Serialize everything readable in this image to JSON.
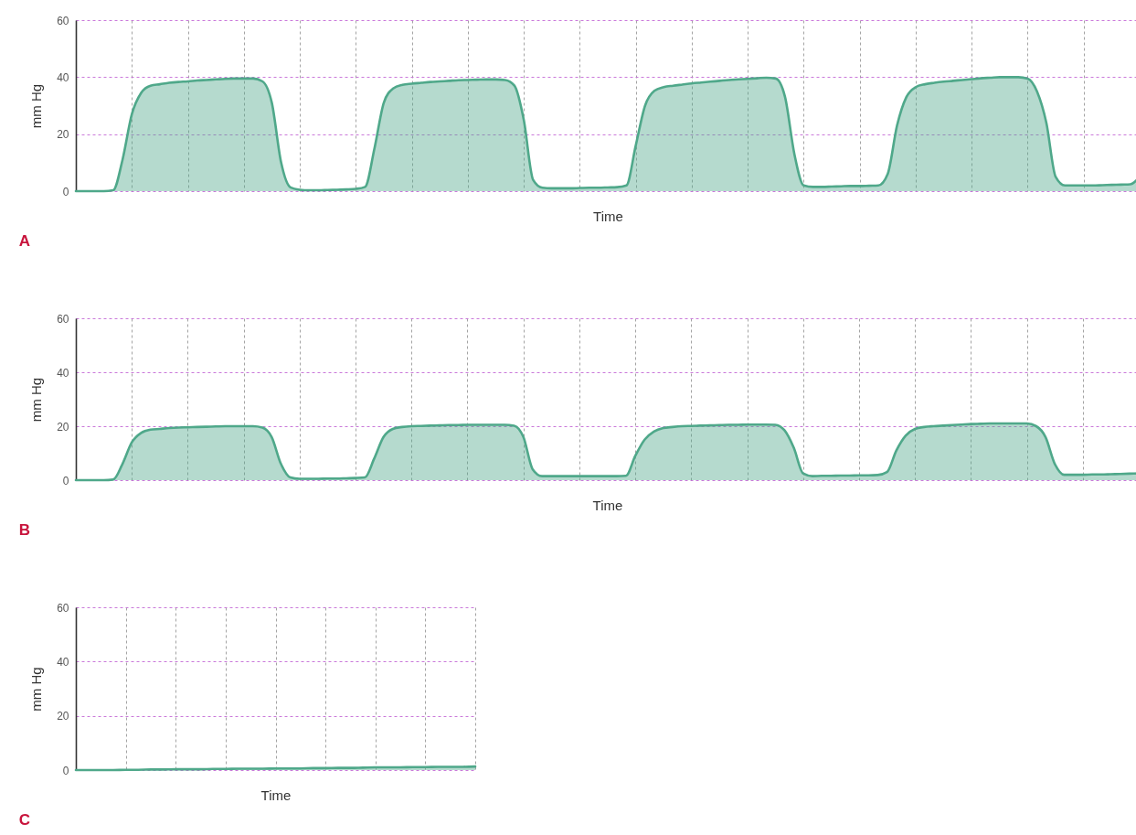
{
  "chart_data": [
    {
      "type": "area",
      "title": "A",
      "xlabel": "Time",
      "ylabel": "mm Hg",
      "color": "#4fa88a",
      "ylim": [
        0,
        60
      ],
      "yticks": [
        0,
        20,
        40,
        60
      ],
      "grid": true,
      "categories": [
        null,
        null,
        null,
        null,
        null,
        null,
        null,
        null,
        null,
        null,
        null,
        null,
        null,
        null,
        null,
        null,
        null,
        null,
        null,
        null,
        null,
        null,
        null,
        null,
        null,
        null,
        null,
        null,
        null,
        null,
        null,
        null,
        null,
        null,
        null,
        null,
        null,
        null,
        null,
        null,
        null,
        null,
        null,
        null,
        null,
        null,
        null,
        null,
        null,
        null,
        null,
        null,
        null,
        null,
        null,
        null,
        null,
        null,
        null,
        null,
        null,
        null,
        null,
        null,
        null,
        null,
        null,
        null,
        null,
        null,
        null,
        null,
        null,
        null,
        null,
        null,
        null,
        null,
        null,
        null,
        null,
        null,
        null,
        null,
        null,
        null,
        null,
        null,
        null,
        null,
        null,
        null,
        null,
        null,
        null,
        null,
        null,
        null,
        null,
        null,
        null,
        null,
        null,
        null,
        null,
        null,
        null,
        null,
        null,
        null,
        null,
        null,
        null,
        null,
        null
      ],
      "values": [
        0,
        0,
        0,
        0,
        0.3,
        11,
        27,
        34.5,
        37,
        37.5,
        38,
        38.3,
        38.5,
        38.8,
        39,
        39.2,
        39.4,
        39.5,
        39.5,
        39.5,
        38.5,
        31,
        10,
        1.3,
        0.5,
        0.3,
        0.3,
        0.4,
        0.5,
        0.6,
        0.8,
        1.5,
        15,
        31,
        36,
        37.3,
        37.7,
        38,
        38.3,
        38.5,
        38.7,
        38.9,
        39,
        39.1,
        39.2,
        39.2,
        39,
        37,
        25,
        4,
        1.2,
        1,
        1,
        1,
        1.1,
        1.2,
        1.2,
        1.3,
        1.4,
        2,
        16,
        30,
        35.2,
        36.5,
        37,
        37.4,
        37.8,
        38.1,
        38.4,
        38.7,
        39,
        39.2,
        39.4,
        39.6,
        39.8,
        39.5,
        33,
        13,
        2,
        1.5,
        1.5,
        1.6,
        1.7,
        1.8,
        1.8,
        1.9,
        2,
        6,
        23,
        33,
        36.5,
        37.5,
        38,
        38.4,
        38.7,
        39,
        39.3,
        39.6,
        39.8,
        40,
        40,
        40,
        39.5,
        35,
        24,
        5,
        2,
        2,
        2,
        2,
        2.1,
        2.2,
        2.3,
        2.4,
        5
      ]
    },
    {
      "type": "area",
      "title": "B",
      "xlabel": "Time",
      "ylabel": "mm Hg",
      "color": "#4fa88a",
      "ylim": [
        0,
        60
      ],
      "yticks": [
        0,
        20,
        40,
        60
      ],
      "grid": true,
      "categories": [
        null,
        null,
        null,
        null,
        null,
        null,
        null,
        null,
        null,
        null,
        null,
        null,
        null,
        null,
        null,
        null,
        null,
        null,
        null,
        null,
        null,
        null,
        null,
        null,
        null,
        null,
        null,
        null,
        null,
        null,
        null,
        null,
        null,
        null,
        null,
        null,
        null,
        null,
        null,
        null,
        null,
        null,
        null,
        null,
        null,
        null,
        null,
        null,
        null,
        null,
        null,
        null,
        null,
        null,
        null,
        null,
        null,
        null,
        null,
        null,
        null,
        null,
        null,
        null,
        null,
        null,
        null,
        null,
        null,
        null,
        null,
        null,
        null,
        null,
        null,
        null,
        null,
        null,
        null,
        null,
        null,
        null,
        null,
        null,
        null,
        null,
        null,
        null,
        null,
        null,
        null,
        null,
        null,
        null,
        null,
        null,
        null,
        null,
        null,
        null,
        null,
        null,
        null,
        null,
        null,
        null,
        null,
        null,
        null,
        null,
        null,
        null,
        null,
        null,
        null
      ],
      "values": [
        0,
        0,
        0,
        0,
        0.2,
        6,
        14,
        17.5,
        18.7,
        19,
        19.3,
        19.5,
        19.6,
        19.7,
        19.8,
        19.9,
        20,
        20,
        20,
        20,
        19.5,
        16,
        6,
        1,
        0.5,
        0.5,
        0.5,
        0.6,
        0.6,
        0.7,
        0.8,
        1,
        8,
        16,
        19,
        19.7,
        20,
        20.1,
        20.2,
        20.3,
        20.4,
        20.4,
        20.5,
        20.5,
        20.5,
        20.5,
        20.5,
        20.2,
        16,
        4,
        1.5,
        1.5,
        1.5,
        1.5,
        1.5,
        1.5,
        1.5,
        1.5,
        1.5,
        1.6,
        9,
        15,
        18,
        19.3,
        19.7,
        20,
        20.1,
        20.2,
        20.3,
        20.4,
        20.5,
        20.5,
        20.6,
        20.6,
        20.6,
        20.5,
        18.5,
        12,
        2.5,
        1.5,
        1.6,
        1.6,
        1.7,
        1.7,
        1.8,
        1.8,
        1.9,
        3,
        11,
        16.5,
        19,
        19.7,
        20,
        20.2,
        20.4,
        20.6,
        20.8,
        20.9,
        21,
        21,
        21,
        21,
        21,
        20,
        16,
        6,
        2,
        2,
        2,
        2.1,
        2.1,
        2.2,
        2.3,
        2.4,
        2.5
      ]
    },
    {
      "type": "area",
      "title": "C",
      "xlabel": "Time",
      "ylabel": "mm Hg",
      "color": "#4fa88a",
      "ylim": [
        0,
        60
      ],
      "yticks": [
        0,
        20,
        40,
        60
      ],
      "grid": true,
      "categories": [
        null,
        null,
        null,
        null,
        null,
        null,
        null,
        null,
        null,
        null,
        null,
        null,
        null,
        null,
        null,
        null,
        null,
        null,
        null,
        null,
        null,
        null,
        null,
        null,
        null,
        null,
        null,
        null,
        null,
        null,
        null,
        null,
        null
      ],
      "values": [
        0,
        0,
        0,
        0,
        0.1,
        0.1,
        0.2,
        0.2,
        0.3,
        0.3,
        0.3,
        0.4,
        0.4,
        0.5,
        0.5,
        0.5,
        0.6,
        0.6,
        0.6,
        0.7,
        0.7,
        0.8,
        0.8,
        0.9,
        1,
        1,
        1,
        1.1,
        1.1,
        1.2,
        1.2,
        1.2,
        1.3
      ]
    }
  ]
}
